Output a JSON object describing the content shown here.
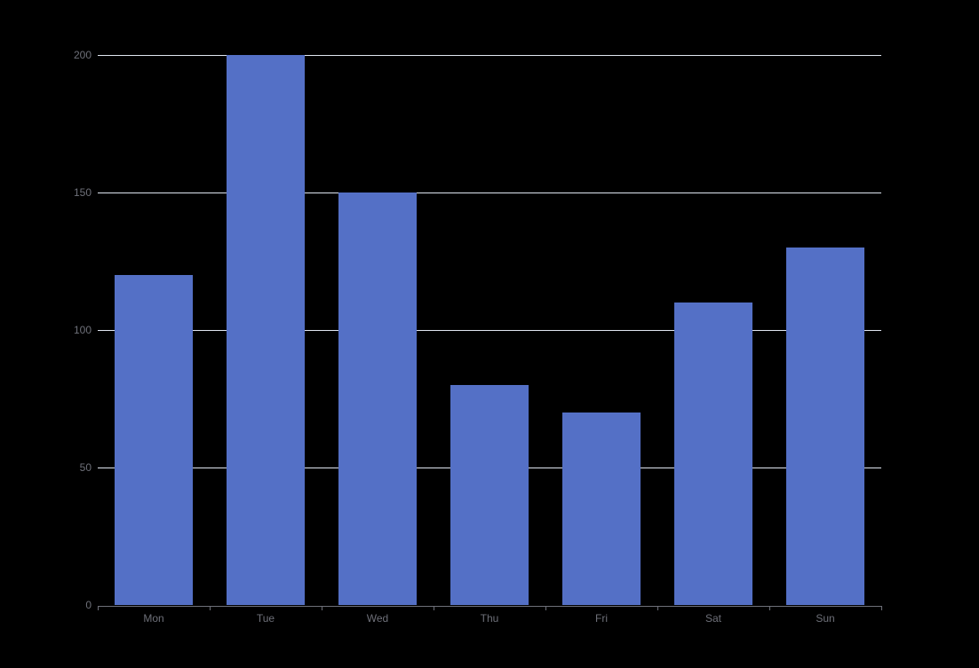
{
  "chart_data": {
    "type": "bar",
    "categories": [
      "Mon",
      "Tue",
      "Wed",
      "Thu",
      "Fri",
      "Sat",
      "Sun"
    ],
    "values": [
      120,
      200,
      150,
      80,
      70,
      110,
      130
    ],
    "title": "",
    "xlabel": "",
    "ylabel": "",
    "ylim": [
      0,
      200
    ],
    "yticks": [
      0,
      50,
      100,
      150,
      200
    ],
    "grid": true,
    "legend": false,
    "colors": {
      "background": "#000000",
      "bar": "#5470c6",
      "gridline": "#E0E6F1",
      "axis_line": "#6E7079",
      "axis_label": "#6E7079"
    }
  }
}
